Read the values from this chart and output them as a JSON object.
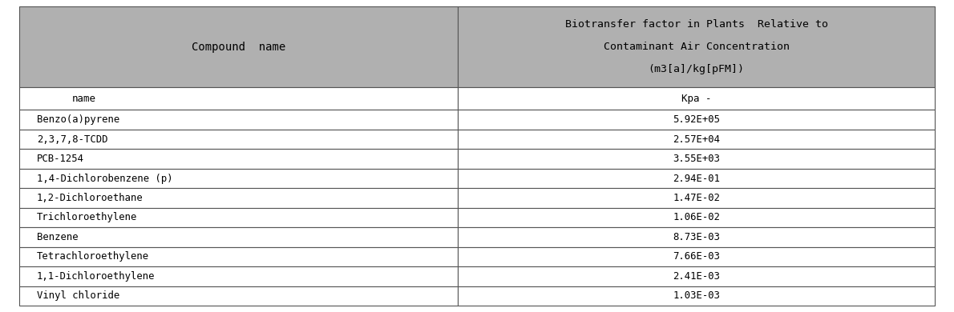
{
  "header_col1": "Compound  name",
  "header_col2_line1": "Biotransfer factor in Plants  Relative to",
  "header_col2_line2": "Contaminant Air Concentration",
  "header_col2_line3": "(m3[a]/kg[pFM])",
  "subheader_col1": "name",
  "subheader_col2": "Kpa -",
  "rows": [
    [
      "Benzo(a)pyrene",
      "5.92E+05"
    ],
    [
      "2,3,7,8-TCDD",
      "2.57E+04"
    ],
    [
      "PCB-1254",
      "3.55E+03"
    ],
    [
      "1,4-Dichlorobenzene (p)",
      "2.94E-01"
    ],
    [
      "1,2-Dichloroethane",
      "1.47E-02"
    ],
    [
      "Trichloroethylene",
      "1.06E-02"
    ],
    [
      "Benzene",
      "8.73E-03"
    ],
    [
      "Tetrachloroethylene",
      "7.66E-03"
    ],
    [
      "1,1-Dichloroethylene",
      "2.41E-03"
    ],
    [
      "Vinyl chloride",
      "1.03E-03"
    ]
  ],
  "header_bg": "#b0b0b0",
  "subheader_bg": "#ffffff",
  "row_bg": "#ffffff",
  "border_color": "#555555",
  "text_color": "#000000",
  "col_split": 0.48,
  "fig_width": 11.9,
  "fig_height": 3.9
}
